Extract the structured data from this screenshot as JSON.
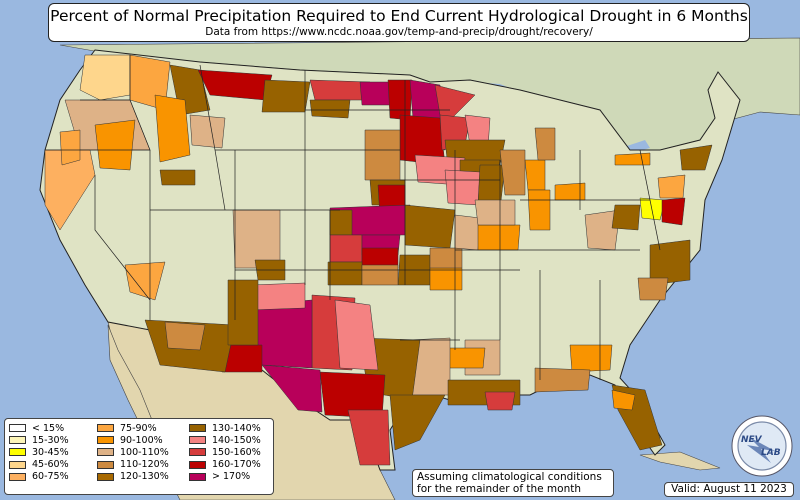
{
  "title": "Percent of Normal Precipitation Required to End Current Hydrological Drought in 6 Months",
  "subtitle": "Data from https://www.ncdc.noaa.gov/temp-and-precip/drought/recovery/",
  "legend": [
    {
      "label": "< 15%",
      "color": "#ffffff"
    },
    {
      "label": "15-30%",
      "color": "#fdf5b8"
    },
    {
      "label": "30-45%",
      "color": "#ffff00"
    },
    {
      "label": "45-60%",
      "color": "#fed68c"
    },
    {
      "label": "60-75%",
      "color": "#fdb060"
    },
    {
      "label": "75-90%",
      "color": "#fca640"
    },
    {
      "label": "90-100%",
      "color": "#f99400"
    },
    {
      "label": "100-110%",
      "color": "#deb287"
    },
    {
      "label": "110-120%",
      "color": "#cd8a40"
    },
    {
      "label": "120-130%",
      "color": "#a86900"
    },
    {
      "label": "130-140%",
      "color": "#976200"
    },
    {
      "label": "140-150%",
      "color": "#f48282"
    },
    {
      "label": "150-160%",
      "color": "#d63c3c"
    },
    {
      "label": "160-170%",
      "color": "#bb0000"
    },
    {
      "label": "> 170%",
      "color": "#b8005a"
    }
  ],
  "note": {
    "line1": "Assuming climatological conditions",
    "line2": "for the remainder of the month"
  },
  "valid": "Valid: August 11 2023",
  "logo_text": {
    "top": "NEV",
    "bottom": "LAB"
  },
  "colors": {
    "ocean": "#9ab8e0",
    "land": "#dfe3c4",
    "canada": "#cfd9b8",
    "mexico": "#e2d6ae",
    "border": "#222222"
  }
}
